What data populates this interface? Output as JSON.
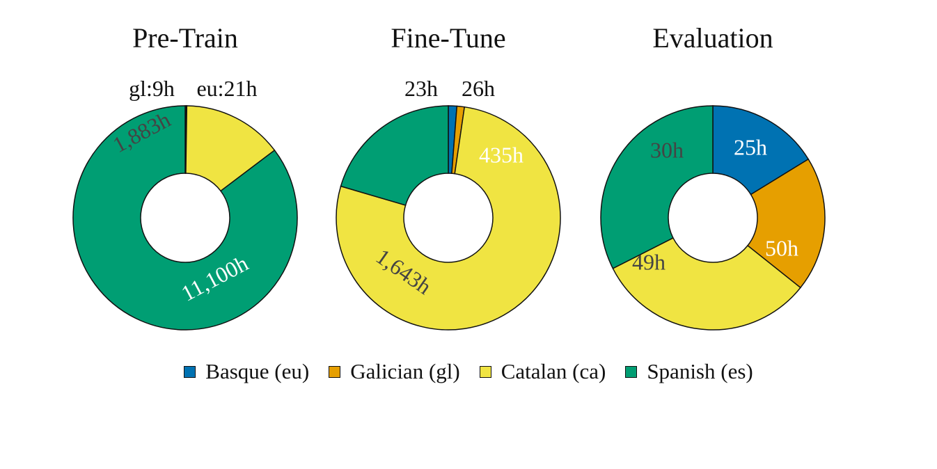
{
  "legend": [
    {
      "label": "Basque (eu)",
      "color": "#0072b2"
    },
    {
      "label": "Galician (gl)",
      "color": "#e69f00"
    },
    {
      "label": "Catalan (ca)",
      "color": "#f0e442"
    },
    {
      "label": "Spanish (es)",
      "color": "#009e73"
    }
  ],
  "chart_data": [
    {
      "type": "pie",
      "title": "Pre-Train",
      "slices": [
        {
          "lang": "eu",
          "value": 21,
          "label": "eu:21h",
          "color": "#0072b2"
        },
        {
          "lang": "gl",
          "value": 9,
          "label": "gl:9h",
          "color": "#e69f00"
        },
        {
          "lang": "ca",
          "value": 1883,
          "label": "1,883h",
          "color": "#f0e442"
        },
        {
          "lang": "es",
          "value": 11100,
          "label": "11,100h",
          "color": "#009e73"
        }
      ]
    },
    {
      "type": "pie",
      "title": "Fine-Tune",
      "slices": [
        {
          "lang": "eu",
          "value": 26,
          "label": "26h",
          "color": "#0072b2"
        },
        {
          "lang": "gl",
          "value": 23,
          "label": "23h",
          "color": "#e69f00"
        },
        {
          "lang": "ca",
          "value": 1643,
          "label": "1,643h",
          "color": "#f0e442"
        },
        {
          "lang": "es",
          "value": 435,
          "label": "435h",
          "color": "#009e73"
        }
      ]
    },
    {
      "type": "pie",
      "title": "Evaluation",
      "slices": [
        {
          "lang": "eu",
          "value": 25,
          "label": "25h",
          "color": "#0072b2"
        },
        {
          "lang": "gl",
          "value": 30,
          "label": "30h",
          "color": "#e69f00"
        },
        {
          "lang": "ca",
          "value": 49,
          "label": "49h",
          "color": "#f0e442"
        },
        {
          "lang": "es",
          "value": 50,
          "label": "50h",
          "color": "#009e73"
        }
      ]
    }
  ]
}
